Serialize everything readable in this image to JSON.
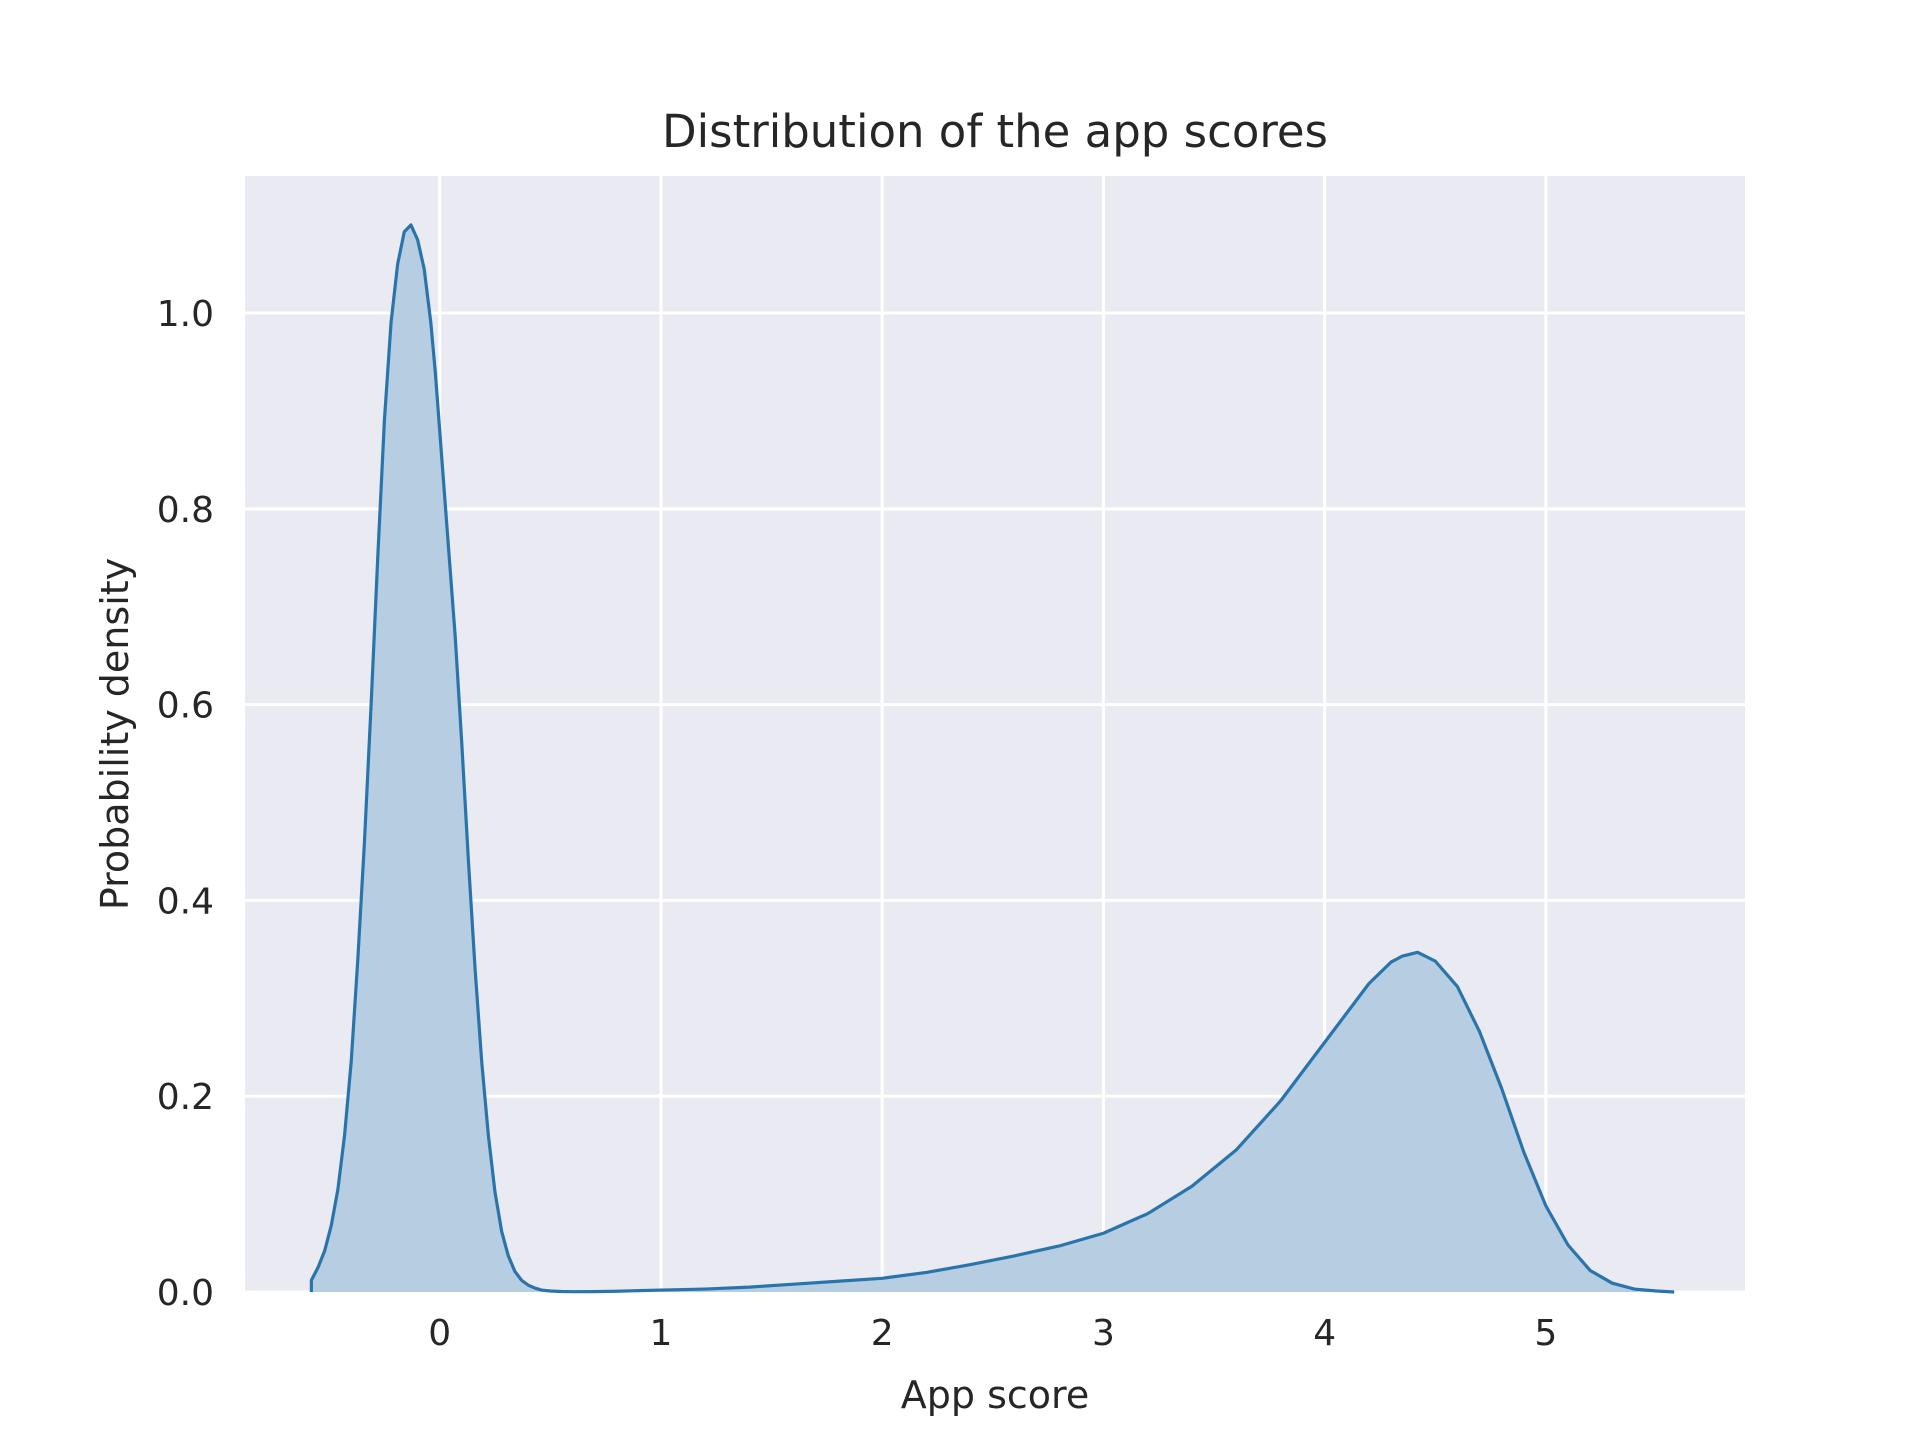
{
  "chart_data": {
    "type": "area",
    "title": "Distribution of the app scores",
    "xlabel": "App score",
    "ylabel": "Probability density",
    "xlim": [
      -0.88,
      5.9
    ],
    "ylim": [
      0.0,
      1.14
    ],
    "xticks": [
      0,
      1,
      2,
      3,
      4,
      5
    ],
    "xtick_labels": [
      "0",
      "1",
      "2",
      "3",
      "4",
      "5"
    ],
    "yticks": [
      0.0,
      0.2,
      0.4,
      0.6,
      0.8,
      1.0
    ],
    "ytick_labels": [
      "0.0",
      "0.2",
      "0.4",
      "0.6",
      "0.8",
      "1.0"
    ],
    "grid": true,
    "legend": false,
    "colors": {
      "background": "#eaeaf2",
      "grid": "#ffffff",
      "line": "#2a74ac",
      "fill": "#b6cde2"
    },
    "series": [
      {
        "x": [
          -0.58,
          -0.58,
          -0.55,
          -0.52,
          -0.49,
          -0.46,
          -0.43,
          -0.4,
          -0.37,
          -0.34,
          -0.31,
          -0.28,
          -0.25,
          -0.22,
          -0.19,
          -0.16,
          -0.13,
          -0.1,
          -0.07,
          -0.04,
          -0.02,
          0.0,
          0.02,
          0.04,
          0.07,
          0.1,
          0.13,
          0.16,
          0.19,
          0.22,
          0.25,
          0.28,
          0.31,
          0.34,
          0.37,
          0.4,
          0.43,
          0.46,
          0.5,
          0.55,
          0.6,
          0.7,
          0.8,
          1.0,
          1.2,
          1.4,
          1.6,
          1.8,
          2.0,
          2.2,
          2.4,
          2.6,
          2.8,
          3.0,
          3.2,
          3.4,
          3.6,
          3.8,
          4.0,
          4.1,
          4.2,
          4.3,
          4.35,
          4.42,
          4.5,
          4.6,
          4.7,
          4.8,
          4.9,
          5.0,
          5.1,
          5.2,
          5.3,
          5.4,
          5.5,
          5.58
        ],
        "y": [
          0.0,
          0.012,
          0.025,
          0.042,
          0.068,
          0.105,
          0.16,
          0.235,
          0.34,
          0.46,
          0.6,
          0.75,
          0.89,
          0.99,
          1.05,
          1.083,
          1.09,
          1.075,
          1.045,
          0.99,
          0.94,
          0.88,
          0.82,
          0.76,
          0.67,
          0.56,
          0.44,
          0.33,
          0.235,
          0.16,
          0.102,
          0.062,
          0.037,
          0.021,
          0.012,
          0.007,
          0.004,
          0.002,
          0.001,
          0.0005,
          0.0003,
          0.0004,
          0.0008,
          0.002,
          0.003,
          0.005,
          0.008,
          0.011,
          0.014,
          0.02,
          0.028,
          0.037,
          0.047,
          0.06,
          0.08,
          0.108,
          0.145,
          0.195,
          0.255,
          0.285,
          0.315,
          0.337,
          0.343,
          0.347,
          0.338,
          0.312,
          0.266,
          0.208,
          0.143,
          0.088,
          0.048,
          0.022,
          0.009,
          0.003,
          0.001,
          0.0
        ]
      }
    ]
  }
}
